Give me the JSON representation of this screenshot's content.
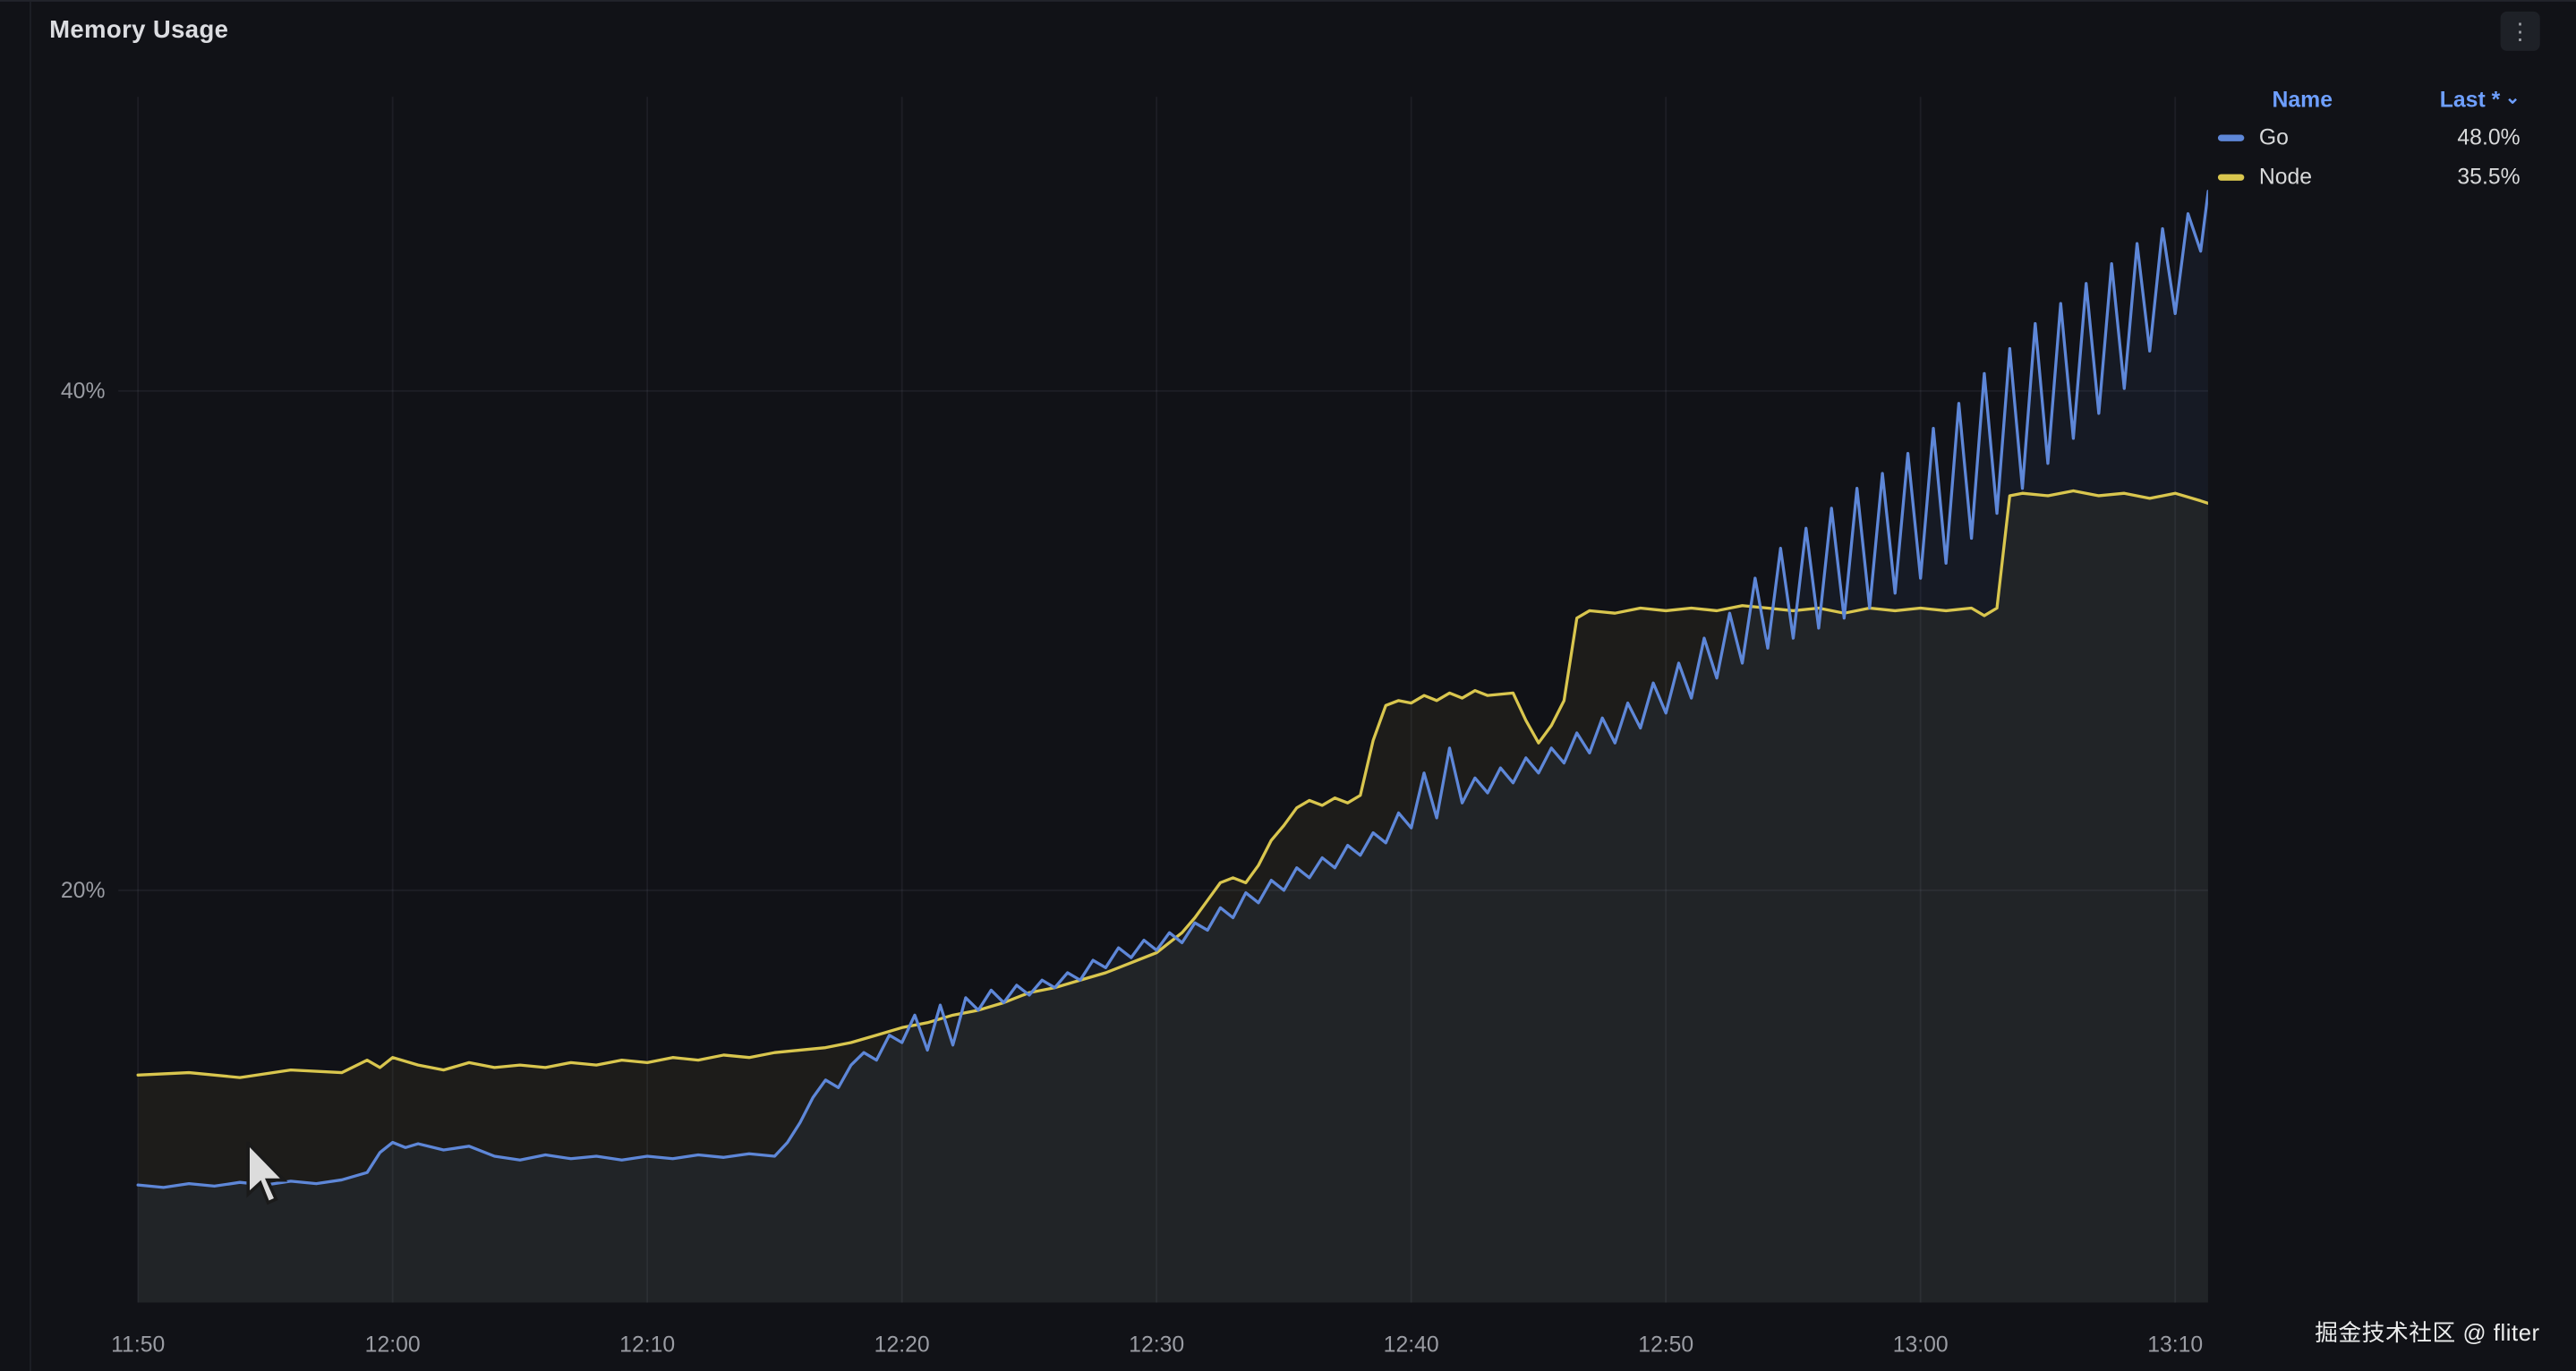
{
  "panel": {
    "title": "Memory Usage"
  },
  "icons": {
    "kebab": "⋮",
    "caret_down": "⌄"
  },
  "legend": {
    "header": {
      "name": "Name",
      "last": "Last *"
    },
    "rows": [
      {
        "label": "Go",
        "value": "48.0%",
        "color": "#5e87d8"
      },
      {
        "label": "Node",
        "value": "35.5%",
        "color": "#d9c64e"
      }
    ]
  },
  "watermark": "掘金技术社区 @ fliter",
  "chart_data": {
    "type": "line",
    "title": "Memory Usage",
    "unit": "percent",
    "grid": true,
    "legend_position": "top-right",
    "x_axis": {
      "ticks": [
        "11:50",
        "12:00",
        "12:10",
        "12:20",
        "12:30",
        "12:40",
        "12:50",
        "13:00",
        "13:10"
      ],
      "tick_interval_minutes": 10
    },
    "y_axis": {
      "tick_values": [
        20,
        40
      ],
      "tick_labels": [
        "20%",
        "40%"
      ],
      "visible_range": [
        3.5,
        52
      ]
    },
    "series": [
      {
        "name": "Go",
        "color": "#5e87d8",
        "fill_opacity": 0.07,
        "last": 48.0,
        "points": [
          [
            0,
            8.2
          ],
          [
            1,
            8.1
          ],
          [
            2,
            8.25
          ],
          [
            3,
            8.15
          ],
          [
            4,
            8.3
          ],
          [
            5,
            8.2
          ],
          [
            6,
            8.35
          ],
          [
            7,
            8.25
          ],
          [
            8,
            8.4
          ],
          [
            9,
            8.7
          ],
          [
            9.5,
            9.5
          ],
          [
            10,
            9.9
          ],
          [
            10.5,
            9.7
          ],
          [
            11,
            9.85
          ],
          [
            12,
            9.6
          ],
          [
            13,
            9.75
          ],
          [
            14,
            9.35
          ],
          [
            15,
            9.2
          ],
          [
            16,
            9.4
          ],
          [
            17,
            9.25
          ],
          [
            18,
            9.35
          ],
          [
            19,
            9.2
          ],
          [
            20,
            9.35
          ],
          [
            21,
            9.25
          ],
          [
            22,
            9.4
          ],
          [
            23,
            9.3
          ],
          [
            24,
            9.45
          ],
          [
            25,
            9.35
          ],
          [
            25.5,
            9.9
          ],
          [
            26,
            10.7
          ],
          [
            26.5,
            11.7
          ],
          [
            27,
            12.4
          ],
          [
            27.5,
            12.1
          ],
          [
            28,
            13.0
          ],
          [
            28.5,
            13.5
          ],
          [
            29,
            13.2
          ],
          [
            29.5,
            14.2
          ],
          [
            30,
            13.9
          ],
          [
            30.5,
            15.0
          ],
          [
            31,
            13.6
          ],
          [
            31.5,
            15.4
          ],
          [
            32,
            13.8
          ],
          [
            32.5,
            15.7
          ],
          [
            33,
            15.2
          ],
          [
            33.5,
            16.0
          ],
          [
            34,
            15.5
          ],
          [
            34.5,
            16.2
          ],
          [
            35,
            15.8
          ],
          [
            35.5,
            16.4
          ],
          [
            36,
            16.1
          ],
          [
            36.5,
            16.7
          ],
          [
            37,
            16.4
          ],
          [
            37.5,
            17.2
          ],
          [
            38,
            16.9
          ],
          [
            38.5,
            17.7
          ],
          [
            39,
            17.3
          ],
          [
            39.5,
            18.0
          ],
          [
            40,
            17.6
          ],
          [
            40.5,
            18.3
          ],
          [
            41,
            17.9
          ],
          [
            41.5,
            18.7
          ],
          [
            42,
            18.4
          ],
          [
            42.5,
            19.3
          ],
          [
            43,
            18.9
          ],
          [
            43.5,
            19.9
          ],
          [
            44,
            19.5
          ],
          [
            44.5,
            20.4
          ],
          [
            45,
            20.0
          ],
          [
            45.5,
            20.9
          ],
          [
            46,
            20.5
          ],
          [
            46.5,
            21.3
          ],
          [
            47,
            20.9
          ],
          [
            47.5,
            21.8
          ],
          [
            48,
            21.4
          ],
          [
            48.5,
            22.3
          ],
          [
            49,
            21.9
          ],
          [
            49.5,
            23.1
          ],
          [
            50,
            22.5
          ],
          [
            50.5,
            24.7
          ],
          [
            51,
            22.9
          ],
          [
            51.5,
            25.7
          ],
          [
            52,
            23.5
          ],
          [
            52.5,
            24.5
          ],
          [
            53,
            23.9
          ],
          [
            53.5,
            24.9
          ],
          [
            54,
            24.3
          ],
          [
            54.5,
            25.3
          ],
          [
            55,
            24.7
          ],
          [
            55.5,
            25.7
          ],
          [
            56,
            25.1
          ],
          [
            56.5,
            26.3
          ],
          [
            57,
            25.5
          ],
          [
            57.5,
            26.9
          ],
          [
            58,
            25.9
          ],
          [
            58.5,
            27.5
          ],
          [
            59,
            26.5
          ],
          [
            59.5,
            28.3
          ],
          [
            60,
            27.1
          ],
          [
            60.5,
            29.1
          ],
          [
            61,
            27.7
          ],
          [
            61.5,
            30.1
          ],
          [
            62,
            28.5
          ],
          [
            62.5,
            31.1
          ],
          [
            63,
            29.1
          ],
          [
            63.5,
            32.5
          ],
          [
            64,
            29.7
          ],
          [
            64.5,
            33.7
          ],
          [
            65,
            30.1
          ],
          [
            65.5,
            34.5
          ],
          [
            66,
            30.5
          ],
          [
            66.5,
            35.3
          ],
          [
            67,
            30.9
          ],
          [
            67.5,
            36.1
          ],
          [
            68,
            31.3
          ],
          [
            68.5,
            36.7
          ],
          [
            69,
            31.9
          ],
          [
            69.5,
            37.5
          ],
          [
            70,
            32.5
          ],
          [
            70.5,
            38.5
          ],
          [
            71,
            33.1
          ],
          [
            71.5,
            39.5
          ],
          [
            72,
            34.1
          ],
          [
            72.5,
            40.7
          ],
          [
            73,
            35.1
          ],
          [
            73.5,
            41.7
          ],
          [
            74,
            36.1
          ],
          [
            74.5,
            42.7
          ],
          [
            75,
            37.1
          ],
          [
            75.5,
            43.5
          ],
          [
            76,
            38.1
          ],
          [
            76.5,
            44.3
          ],
          [
            77,
            39.1
          ],
          [
            77.5,
            45.1
          ],
          [
            78,
            40.1
          ],
          [
            78.5,
            45.9
          ],
          [
            79,
            41.6
          ],
          [
            79.5,
            46.5
          ],
          [
            80,
            43.1
          ],
          [
            80.5,
            47.1
          ],
          [
            81,
            45.6
          ],
          [
            81.3,
            48.0
          ]
        ]
      },
      {
        "name": "Node",
        "color": "#d9c64e",
        "fill_opacity": 0.06,
        "last": 35.5,
        "points": [
          [
            0,
            12.6
          ],
          [
            2,
            12.7
          ],
          [
            4,
            12.5
          ],
          [
            6,
            12.8
          ],
          [
            8,
            12.7
          ],
          [
            9,
            13.2
          ],
          [
            9.5,
            12.9
          ],
          [
            10,
            13.3
          ],
          [
            11,
            13.0
          ],
          [
            12,
            12.8
          ],
          [
            13,
            13.1
          ],
          [
            14,
            12.9
          ],
          [
            15,
            13.0
          ],
          [
            16,
            12.9
          ],
          [
            17,
            13.1
          ],
          [
            18,
            13.0
          ],
          [
            19,
            13.2
          ],
          [
            20,
            13.1
          ],
          [
            21,
            13.3
          ],
          [
            22,
            13.2
          ],
          [
            23,
            13.4
          ],
          [
            24,
            13.3
          ],
          [
            25,
            13.5
          ],
          [
            26,
            13.6
          ],
          [
            27,
            13.7
          ],
          [
            28,
            13.9
          ],
          [
            29,
            14.2
          ],
          [
            30,
            14.5
          ],
          [
            31,
            14.7
          ],
          [
            32,
            15.0
          ],
          [
            33,
            15.2
          ],
          [
            34,
            15.5
          ],
          [
            35,
            15.9
          ],
          [
            36,
            16.1
          ],
          [
            37,
            16.4
          ],
          [
            38,
            16.7
          ],
          [
            39,
            17.1
          ],
          [
            40,
            17.5
          ],
          [
            41,
            18.3
          ],
          [
            41.5,
            18.9
          ],
          [
            42,
            19.6
          ],
          [
            42.5,
            20.3
          ],
          [
            43,
            20.5
          ],
          [
            43.5,
            20.3
          ],
          [
            44,
            21.0
          ],
          [
            44.5,
            22.0
          ],
          [
            45,
            22.6
          ],
          [
            45.5,
            23.3
          ],
          [
            46,
            23.6
          ],
          [
            46.5,
            23.4
          ],
          [
            47,
            23.7
          ],
          [
            47.5,
            23.5
          ],
          [
            48,
            23.8
          ],
          [
            48.5,
            26.0
          ],
          [
            49,
            27.4
          ],
          [
            49.5,
            27.6
          ],
          [
            50,
            27.5
          ],
          [
            50.5,
            27.8
          ],
          [
            51,
            27.6
          ],
          [
            51.5,
            27.9
          ],
          [
            52,
            27.7
          ],
          [
            52.5,
            28.0
          ],
          [
            53,
            27.8
          ],
          [
            54,
            27.9
          ],
          [
            54.5,
            26.8
          ],
          [
            55,
            25.9
          ],
          [
            55.5,
            26.6
          ],
          [
            56,
            27.6
          ],
          [
            56.5,
            30.9
          ],
          [
            57,
            31.2
          ],
          [
            58,
            31.1
          ],
          [
            59,
            31.3
          ],
          [
            60,
            31.2
          ],
          [
            61,
            31.3
          ],
          [
            62,
            31.2
          ],
          [
            63,
            31.4
          ],
          [
            64,
            31.3
          ],
          [
            65,
            31.2
          ],
          [
            66,
            31.3
          ],
          [
            67,
            31.1
          ],
          [
            68,
            31.3
          ],
          [
            69,
            31.2
          ],
          [
            70,
            31.3
          ],
          [
            71,
            31.2
          ],
          [
            72,
            31.3
          ],
          [
            72.5,
            31.0
          ],
          [
            73,
            31.3
          ],
          [
            73.5,
            35.8
          ],
          [
            74,
            35.9
          ],
          [
            75,
            35.8
          ],
          [
            76,
            36.0
          ],
          [
            77,
            35.8
          ],
          [
            78,
            35.9
          ],
          [
            79,
            35.7
          ],
          [
            80,
            35.9
          ],
          [
            81,
            35.6
          ],
          [
            81.3,
            35.5
          ]
        ]
      }
    ]
  }
}
